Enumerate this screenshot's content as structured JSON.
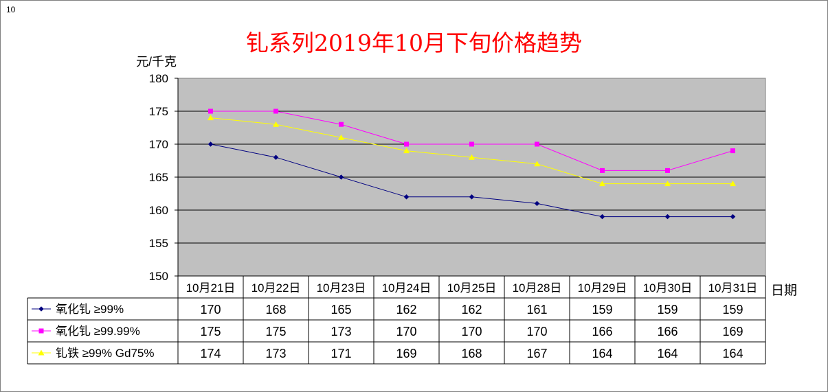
{
  "corner_label": "10",
  "chart_data": {
    "type": "line",
    "title": "钆系列2019年10月下旬价格趋势",
    "ylabel": "元/千克",
    "xlabel": "日期",
    "ylim": [
      150,
      180
    ],
    "yticks": [
      150,
      155,
      160,
      165,
      170,
      175,
      180
    ],
    "grid": true,
    "legend": "bottom-table",
    "categories": [
      "10月21日",
      "10月22日",
      "10月23日",
      "10月24日",
      "10月25日",
      "10月28日",
      "10月29日",
      "10月30日",
      "10月31日"
    ],
    "series": [
      {
        "name": "氧化钆 ≥99%",
        "color": "#000080",
        "marker": "diamond",
        "values": [
          170,
          168,
          165,
          162,
          162,
          161,
          159,
          159,
          159
        ]
      },
      {
        "name": "氧化钆 ≥99.99%",
        "color": "#ff00ff",
        "marker": "square",
        "values": [
          175,
          175,
          173,
          170,
          170,
          170,
          166,
          166,
          169
        ]
      },
      {
        "name": "钆铁 ≥99% Gd75%",
        "color": "#ffff00",
        "marker": "triangle",
        "values": [
          174,
          173,
          171,
          169,
          168,
          167,
          164,
          164,
          164
        ]
      }
    ]
  }
}
